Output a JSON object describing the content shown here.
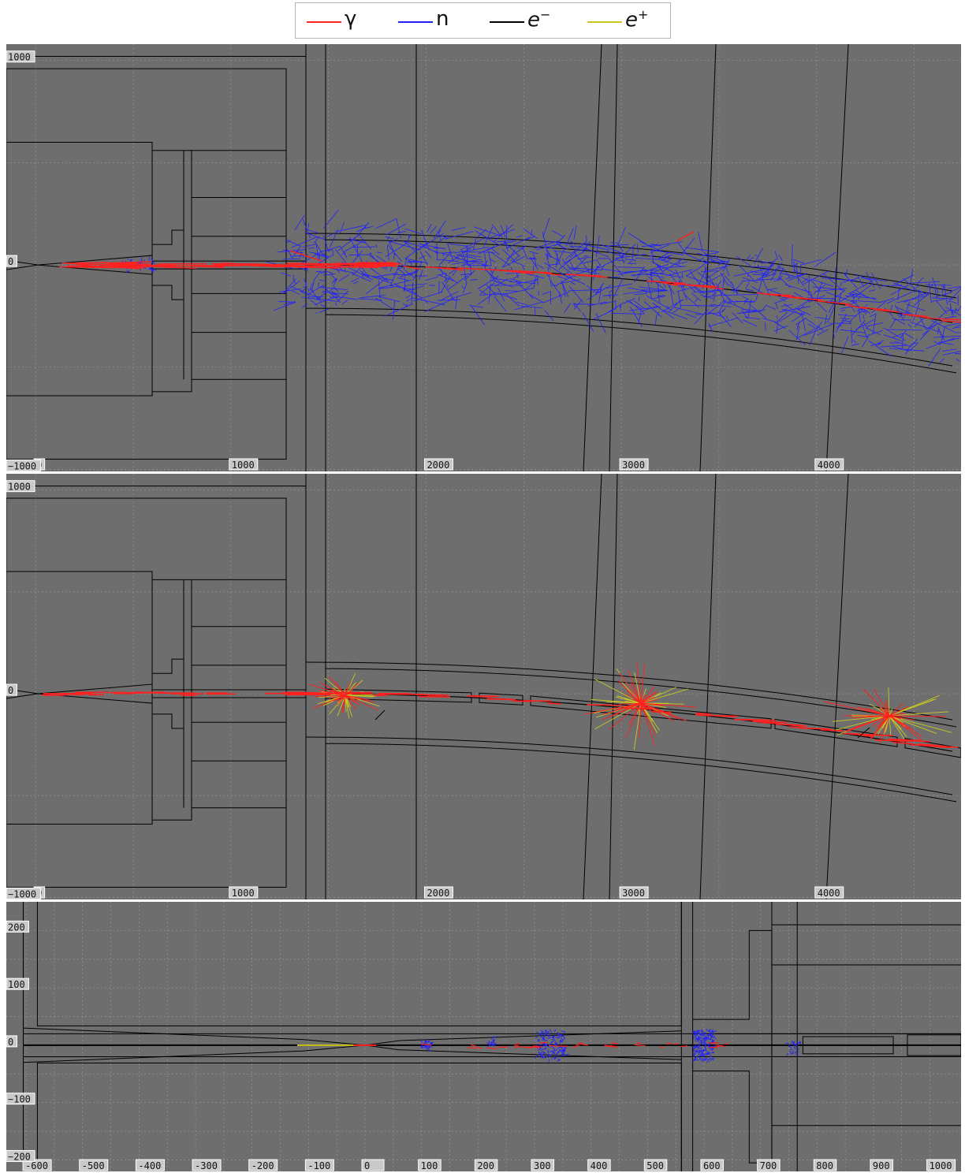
{
  "legend": [
    {
      "label": "γ",
      "color": "#ff2020"
    },
    {
      "label": "n",
      "color": "#2020ff"
    },
    {
      "label": "e",
      "sup": "−",
      "color": "#000000"
    },
    {
      "label": "e",
      "sup": "+",
      "color": "#c8c820"
    }
  ],
  "colors": {
    "background": "#6e6e6e",
    "grid": "#9a9a9a",
    "geometry": "#000000"
  },
  "panels": [
    {
      "name": "top-view-neutrons",
      "xlim": [
        -150,
        4740
      ],
      "ylim": [
        -1010,
        1080
      ],
      "x_ticks": [
        "0",
        "1000",
        "2000",
        "3000",
        "4000"
      ],
      "x_tick_values": [
        0,
        1000,
        2000,
        3000,
        4000
      ],
      "y_ticks": [
        "1000",
        "0",
        "−1000"
      ],
      "y_tick_values": [
        1000,
        0,
        -1000
      ],
      "tracks": [
        "gamma",
        "neutron",
        "electron"
      ]
    },
    {
      "name": "top-view-electromagnetic",
      "xlim": [
        -150,
        4740
      ],
      "ylim": [
        -1010,
        1080
      ],
      "x_ticks": [
        "0",
        "1000",
        "2000",
        "3000",
        "4000"
      ],
      "x_tick_values": [
        0,
        1000,
        2000,
        3000,
        4000
      ],
      "y_ticks": [
        "1000",
        "0",
        "−1000"
      ],
      "y_tick_values": [
        1000,
        0,
        -1000
      ],
      "tracks": [
        "gamma",
        "electron",
        "positron"
      ]
    },
    {
      "name": "zoomed-view",
      "xlim": [
        -635,
        1055
      ],
      "ylim": [
        -220,
        250
      ],
      "x_ticks": [
        "-600",
        "-500",
        "-400",
        "-300",
        "-200",
        "-100",
        "0",
        "100",
        "200",
        "300",
        "400",
        "500",
        "600",
        "700",
        "800",
        "900",
        "1000"
      ],
      "x_tick_values": [
        -600,
        -500,
        -400,
        -300,
        -200,
        -100,
        0,
        100,
        200,
        300,
        400,
        500,
        600,
        700,
        800,
        900,
        1000
      ],
      "y_ticks": [
        "200",
        "100",
        "0",
        "−100",
        "−200"
      ],
      "y_tick_values": [
        200,
        100,
        0,
        -100,
        -200
      ],
      "tracks": [
        "gamma",
        "neutron",
        "electron",
        "positron"
      ]
    }
  ]
}
